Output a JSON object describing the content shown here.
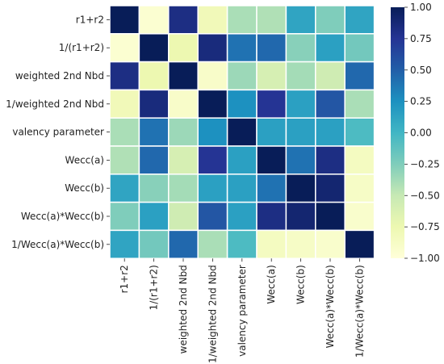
{
  "chart_data": {
    "type": "heatmap",
    "title": "",
    "xlabel": "",
    "ylabel": "",
    "colormap": "YlGnBu",
    "cell_border_color": "#ffffff",
    "row_labels": [
      "r1+r2",
      "1/(r1+r2)",
      "weighted 2nd Nbd",
      "1/weighted 2nd Nbd",
      "valency parameter",
      "Wecc(a)",
      "Wecc(b)",
      "Wecc(a)*Wecc(b)",
      "1/Wecc(a)*Wecc(b)"
    ],
    "col_labels": [
      "r1+r2",
      "1/(r1+r2)",
      "weighted 2nd Nbd",
      "1/weighted 2nd Nbd",
      "valency parameter",
      "Wecc(a)",
      "Wecc(b)",
      "Wecc(a)*Wecc(b)",
      "1/Wecc(a)*Wecc(b)"
    ],
    "values": [
      [
        1.0,
        -0.95,
        0.82,
        -0.8,
        -0.4,
        -0.42,
        0.12,
        -0.25,
        0.12
      ],
      [
        -0.95,
        1.0,
        -0.75,
        0.85,
        0.4,
        0.45,
        -0.28,
        0.15,
        -0.2
      ],
      [
        0.82,
        -0.75,
        1.0,
        -0.9,
        -0.35,
        -0.6,
        -0.38,
        -0.55,
        0.45
      ],
      [
        -0.8,
        0.85,
        -0.9,
        1.0,
        0.25,
        0.75,
        0.15,
        0.55,
        -0.4
      ],
      [
        -0.4,
        0.4,
        -0.35,
        0.25,
        1.0,
        0.15,
        0.15,
        0.15,
        -0.05
      ],
      [
        -0.42,
        0.45,
        -0.6,
        0.75,
        0.15,
        1.0,
        0.4,
        0.82,
        -0.85
      ],
      [
        0.12,
        -0.28,
        -0.38,
        0.15,
        0.15,
        0.4,
        1.0,
        0.9,
        -0.88
      ],
      [
        -0.25,
        0.15,
        -0.55,
        0.55,
        0.15,
        0.82,
        0.9,
        1.0,
        -0.92
      ],
      [
        0.12,
        -0.2,
        0.45,
        -0.4,
        -0.05,
        -0.85,
        -0.88,
        -0.92,
        1.0
      ]
    ],
    "vmin": -1.0,
    "vmax": 1.0,
    "colorbar": {
      "ticks": [
        1.0,
        0.75,
        0.5,
        0.25,
        0.0,
        -0.25,
        -0.5,
        -0.75,
        -1.0
      ],
      "tick_labels": [
        "1.00",
        "0.75",
        "0.50",
        "0.25",
        "0.00",
        "−0.25",
        "−0.50",
        "−0.75",
        "−1.00"
      ]
    }
  }
}
